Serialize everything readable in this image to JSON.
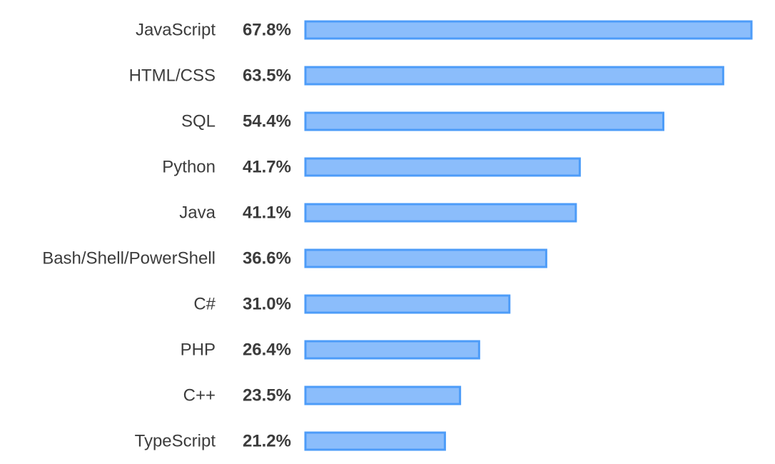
{
  "chart_data": {
    "type": "bar",
    "orientation": "horizontal",
    "categories": [
      "JavaScript",
      "HTML/CSS",
      "SQL",
      "Python",
      "Java",
      "Bash/Shell/PowerShell",
      "C#",
      "PHP",
      "C++",
      "TypeScript"
    ],
    "values": [
      67.8,
      63.5,
      54.4,
      41.7,
      41.1,
      36.6,
      31.0,
      26.4,
      23.5,
      21.2
    ],
    "value_labels": [
      "67.8%",
      "63.5%",
      "54.4%",
      "41.7%",
      "41.1%",
      "36.6%",
      "31.0%",
      "26.4%",
      "23.5%",
      "21.2%"
    ],
    "unit": "%",
    "xlim": [
      0,
      67.8
    ],
    "grid": false,
    "legend": "none",
    "colors": {
      "bar_fill": "#8bbdfb",
      "bar_stroke": "#4d9cf8",
      "text": "#3c3c3c"
    }
  }
}
